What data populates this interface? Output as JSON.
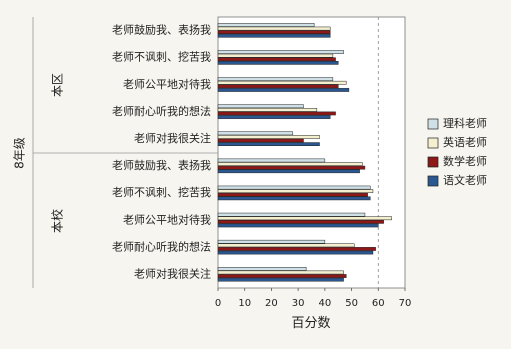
{
  "chart_data": {
    "type": "bar",
    "orientation": "horizontal",
    "xlabel": "百分数",
    "xlim": [
      0,
      70
    ],
    "xticks": [
      0,
      10,
      20,
      30,
      40,
      50,
      60,
      70
    ],
    "reference_line": 60,
    "group_axis_label": "8年级",
    "groups": [
      {
        "name": "本区",
        "categories": [
          "老师鼓励我、表扬我",
          "老师不讽刺、挖苦我",
          "老师公平地对待我",
          "老师耐心听我的想法",
          "老师对我很关注"
        ]
      },
      {
        "name": "本校",
        "categories": [
          "老师鼓励我、表扬我",
          "老师不讽刺、挖苦我",
          "老师公平地对待我",
          "老师耐心听我的想法",
          "老师对我很关注"
        ]
      }
    ],
    "series": [
      {
        "name": "理科老师",
        "color": "#cfe0e6",
        "values": [
          36,
          47,
          43,
          32,
          28,
          40,
          57,
          55,
          40,
          33
        ]
      },
      {
        "name": "英语老师",
        "color": "#f3efcf",
        "values": [
          42,
          43,
          48,
          37,
          38,
          54,
          58,
          65,
          51,
          47
        ]
      },
      {
        "name": "数学老师",
        "color": "#8c1818",
        "values": [
          42,
          44,
          45,
          44,
          32,
          55,
          56,
          62,
          59,
          48
        ]
      },
      {
        "name": "语文老师",
        "color": "#2b5790",
        "values": [
          42,
          45,
          49,
          42,
          38,
          53,
          57,
          60,
          58,
          47
        ]
      }
    ],
    "legend_position": "right"
  }
}
